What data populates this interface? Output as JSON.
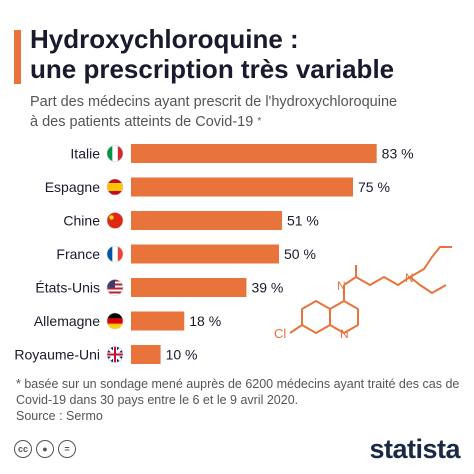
{
  "title_lines": [
    "Hydroxychloroquine :",
    "une prescription très variable"
  ],
  "subtitle_lines": [
    "Part des médecins ayant prescrit de l'hydroxychloroquine",
    "à des patients atteints de Covid-19"
  ],
  "subtitle_mark": "*",
  "footnote_lines": [
    "* basée sur un sondage mené auprès de 6200 médecins ayant traité des cas de",
    "Covid-19 dans 30 pays entre le 6 et le 9 avril 2020.",
    "Source : Sermo"
  ],
  "brand": "statista",
  "colors": {
    "bar": "#e8733b",
    "title": "#1a1a2e",
    "accent": "#e8733b"
  },
  "footer_icons": [
    "cc-icon",
    "attribution-icon",
    "noderivatives-icon"
  ],
  "chart_data": {
    "type": "bar",
    "orientation": "horizontal",
    "categories": [
      "Italie",
      "Espagne",
      "Chine",
      "France",
      "États-Unis",
      "Allemagne",
      "Royaume-Uni"
    ],
    "values": [
      83,
      75,
      51,
      50,
      39,
      18,
      10
    ],
    "value_labels": [
      "83 %",
      "75 %",
      "51 %",
      "50 %",
      "39 %",
      "18 %",
      "10 %"
    ],
    "flag_icons": [
      "italy-flag-icon",
      "spain-flag-icon",
      "china-flag-icon",
      "france-flag-icon",
      "usa-flag-icon",
      "germany-flag-icon",
      "uk-flag-icon"
    ],
    "xlim": [
      0,
      100
    ],
    "grid": false,
    "molecule_label_n": "N",
    "molecule_label_cl": "Cl"
  }
}
